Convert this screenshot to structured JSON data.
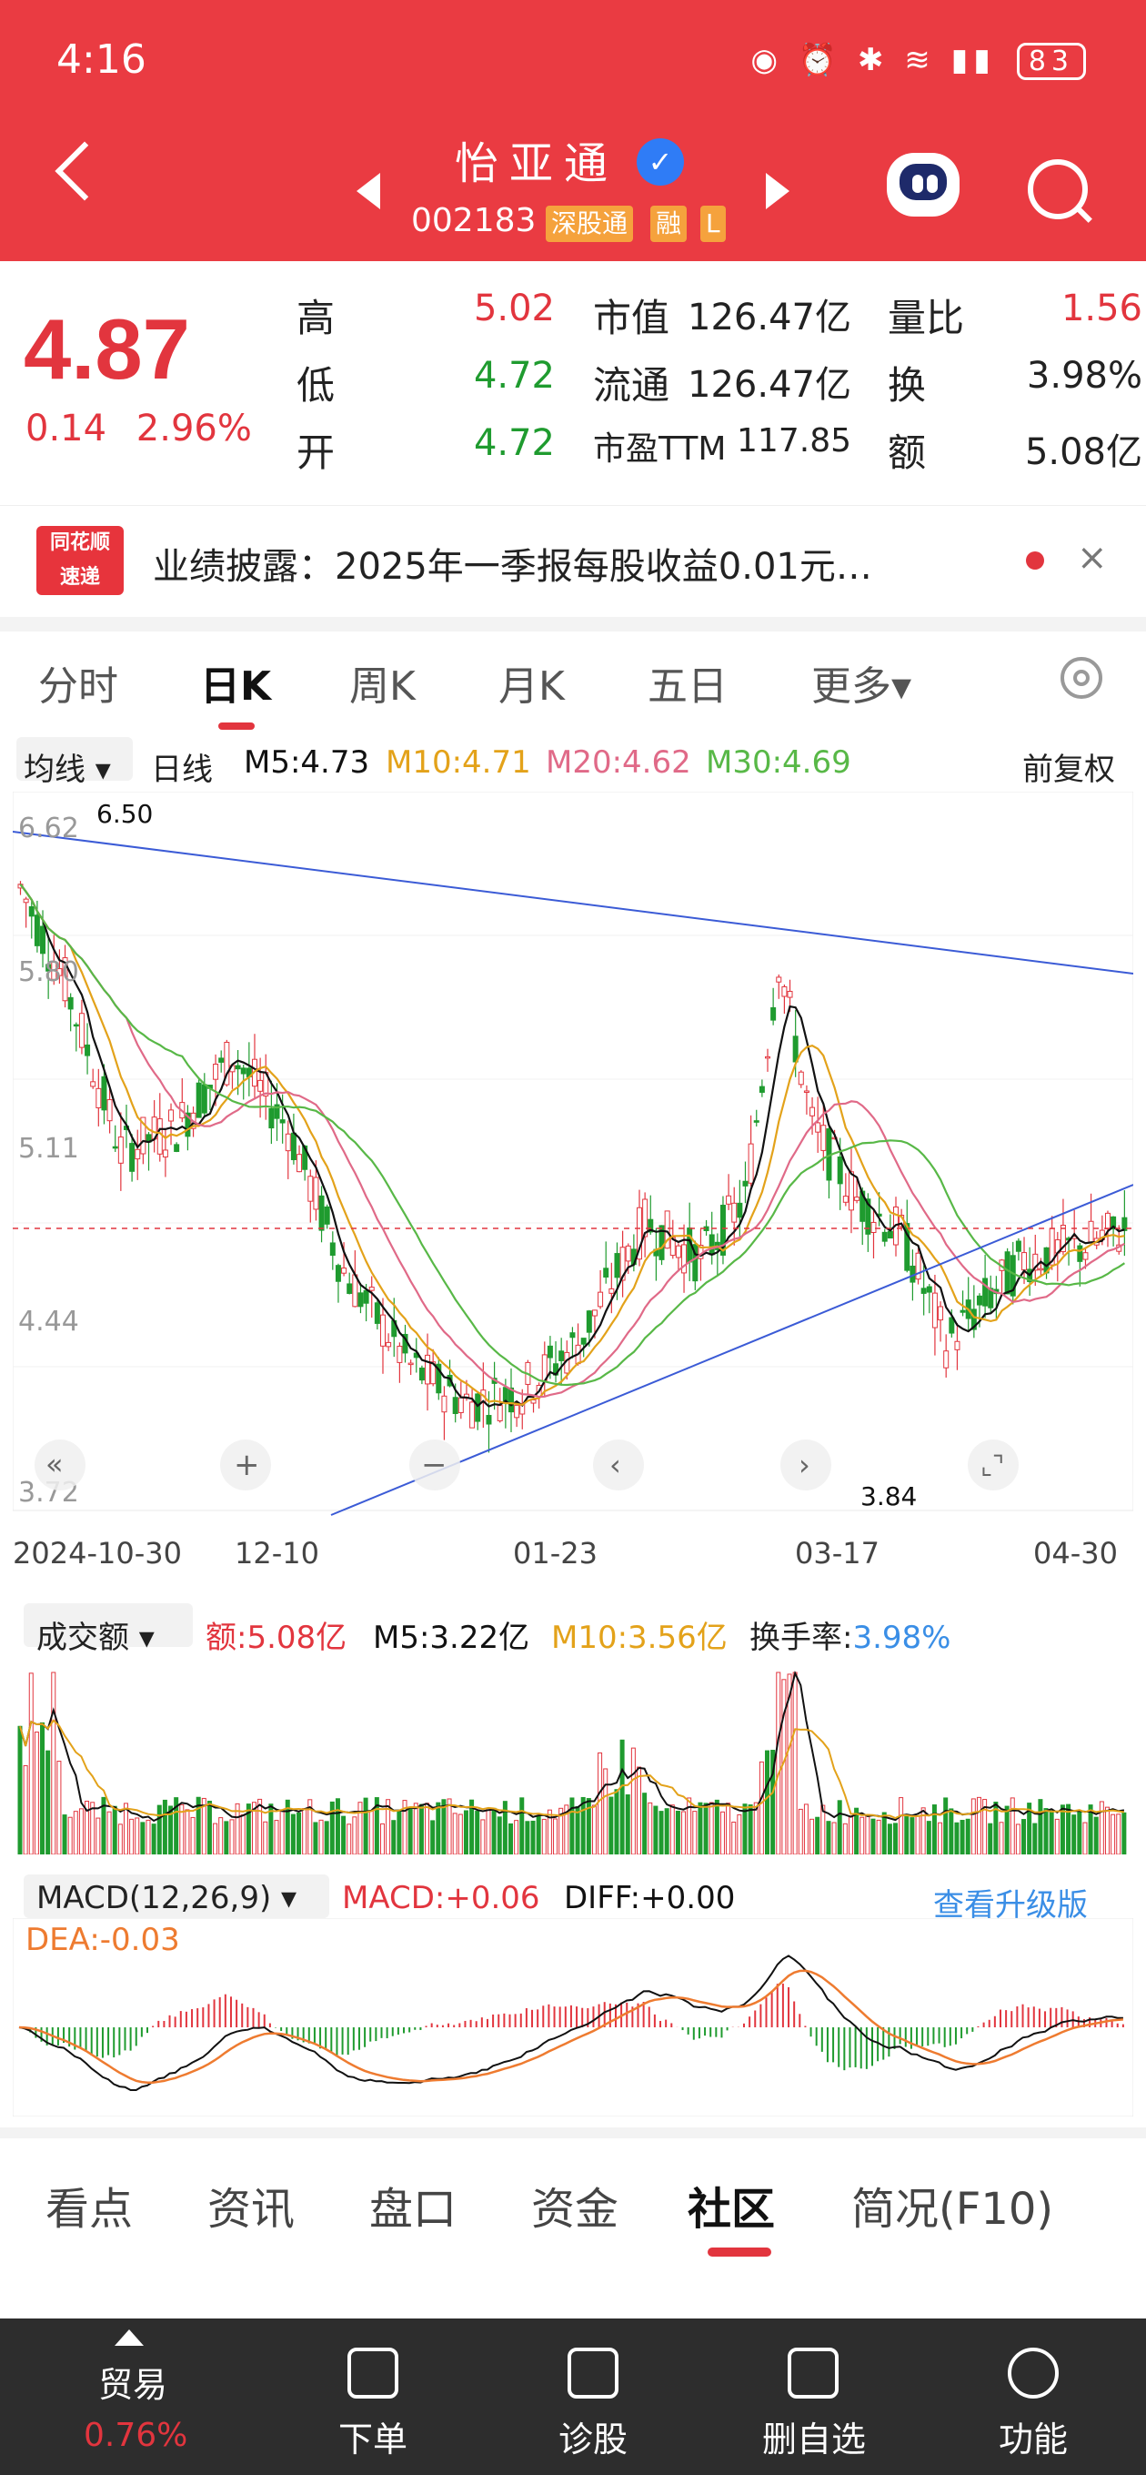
{
  "status_bar": {
    "time": "4:16",
    "battery": "83"
  },
  "header": {
    "stock_name": "怡亚通",
    "stock_code": "002183",
    "tag_connect": "深股通",
    "tag_margin": "融",
    "tag_l": "L"
  },
  "quote": {
    "price": "4.87",
    "change": "0.14",
    "change_pct": "2.96%",
    "high_label": "高",
    "high": "5.02",
    "low_label": "低",
    "low": "4.72",
    "open_label": "开",
    "open": "4.72",
    "mcap_label": "市值",
    "mcap": "126.47亿",
    "float_label": "流通",
    "float": "126.47亿",
    "pe_label": "市盈TTM",
    "pe": "117.85",
    "vol_ratio_label": "量比",
    "vol_ratio": "1.56",
    "turnover_label": "换",
    "turnover": "3.98%",
    "amount_label": "额",
    "amount": "5.08亿"
  },
  "news": {
    "logo_line1": "同花顺",
    "logo_line2": "速递",
    "text": "业绩披露：2025年一季报每股收益0.01元…",
    "close": "×"
  },
  "chart_tabs": [
    "分时",
    "日K",
    "周K",
    "月K",
    "五日",
    "更多▾"
  ],
  "ma_row": {
    "select": "均线 ▾",
    "period": "日线",
    "m5": "M5:4.73",
    "m10": "M10:4.71",
    "m20": "M20:4.62",
    "m30": "M30:4.69",
    "adjust": "前复权"
  },
  "colors": {
    "red": "#e2353e",
    "green": "#1f9b2f",
    "m5": "#111111",
    "m10": "#e3a21a",
    "m20": "#e06a88",
    "m30": "#58b847",
    "trend": "#3b5bd6"
  },
  "kline": {
    "price_ticks": [
      "6.62",
      "5.80",
      "5.11",
      "4.44",
      "3.72"
    ],
    "max_label": "6.50",
    "min_label": "3.84",
    "date_ticks": [
      "2024-10-30",
      "12-10",
      "01-23",
      "03-17",
      "04-30"
    ]
  },
  "volume": {
    "select": "成交额 ▾",
    "amount": "额:5.08亿",
    "m5": "M5:3.22亿",
    "m10": "M10:3.56亿",
    "turnover_label": "换手率:",
    "turnover": "3.98%"
  },
  "macd": {
    "select": "MACD(12,26,9) ▾",
    "macd": "MACD:+0.06",
    "diff": "DIFF:+0.00",
    "upgrade": "查看升级版",
    "dea": "DEA:-0.03"
  },
  "bottom_tabs": [
    "看点",
    "资讯",
    "盘口",
    "资金",
    "社区",
    "简况(F10)"
  ],
  "bottom_bar": {
    "trade": "贸易",
    "trade_pct": "0.76%",
    "order": "下单",
    "diagnose": "诊股",
    "remove_watch": "删自选",
    "functions": "功能"
  }
}
